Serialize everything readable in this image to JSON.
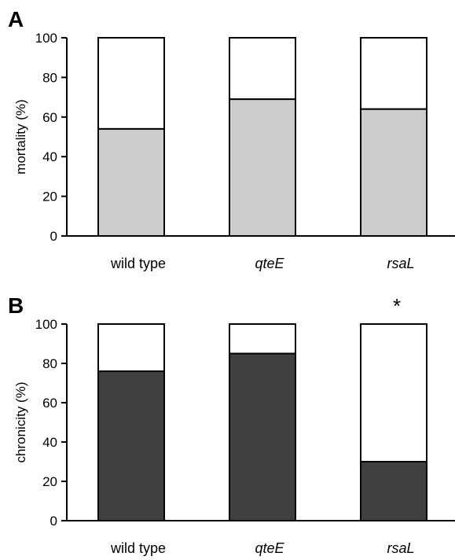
{
  "chart_data": [
    {
      "type": "bar",
      "stacked": true,
      "panel_label": "A",
      "categories": [
        "wild type",
        "qteE",
        "rsaL"
      ],
      "italic_categories": [
        false,
        true,
        true
      ],
      "values": [
        54,
        69,
        64
      ],
      "total": 100,
      "ylabel": "mortality (%)",
      "ylim": [
        0,
        100
      ],
      "yticks": [
        0,
        20,
        40,
        60,
        80,
        100
      ],
      "fill_color": "#cccccc",
      "annotations": []
    },
    {
      "type": "bar",
      "stacked": true,
      "panel_label": "B",
      "categories": [
        "wild type",
        "qteE",
        "rsaL"
      ],
      "italic_categories": [
        false,
        true,
        true
      ],
      "values": [
        76,
        85,
        30
      ],
      "total": 100,
      "ylabel": "chronicity (%)",
      "ylim": [
        0,
        100
      ],
      "yticks": [
        0,
        20,
        40,
        60,
        80,
        100
      ],
      "fill_color": "#404040",
      "annotations": [
        {
          "category": "rsaL",
          "text": "*"
        }
      ]
    }
  ]
}
